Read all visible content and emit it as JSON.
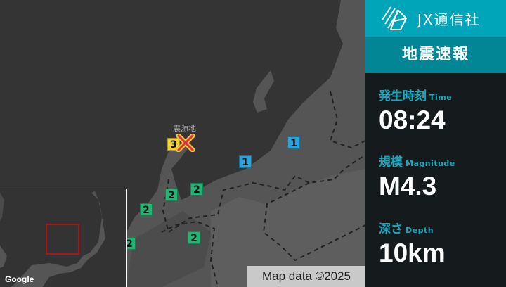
{
  "brand": {
    "name": "JX通信社",
    "logo_icon": "jx-logo-icon"
  },
  "header": {
    "title": "地震速報"
  },
  "info": {
    "time": {
      "label": "発生時刻",
      "label_en": "Time",
      "value": "08:24"
    },
    "magnitude": {
      "label": "規模",
      "label_en": "Magnitude",
      "value": "M4.3"
    },
    "depth": {
      "label": "深さ",
      "label_en": "Depth",
      "value": "10km"
    }
  },
  "map": {
    "epicenter_label": "震源地",
    "attribution": "Map data ©2025",
    "google_logo": "Google",
    "markers": [
      {
        "intensity": "3",
        "color": "#f2d43a"
      },
      {
        "intensity": "1",
        "color": "#29a3dc"
      },
      {
        "intensity": "1",
        "color": "#29a3dc"
      },
      {
        "intensity": "2",
        "color": "#22b573"
      },
      {
        "intensity": "2",
        "color": "#22b573"
      },
      {
        "intensity": "2",
        "color": "#22b573"
      },
      {
        "intensity": "2",
        "color": "#22b573"
      },
      {
        "intensity": "2",
        "color": "#22b573"
      }
    ]
  },
  "colors": {
    "brand": "#00a5b9",
    "title_bg": "#008694",
    "label": "#1aa6bd",
    "panel_bg": "#151b1d"
  }
}
